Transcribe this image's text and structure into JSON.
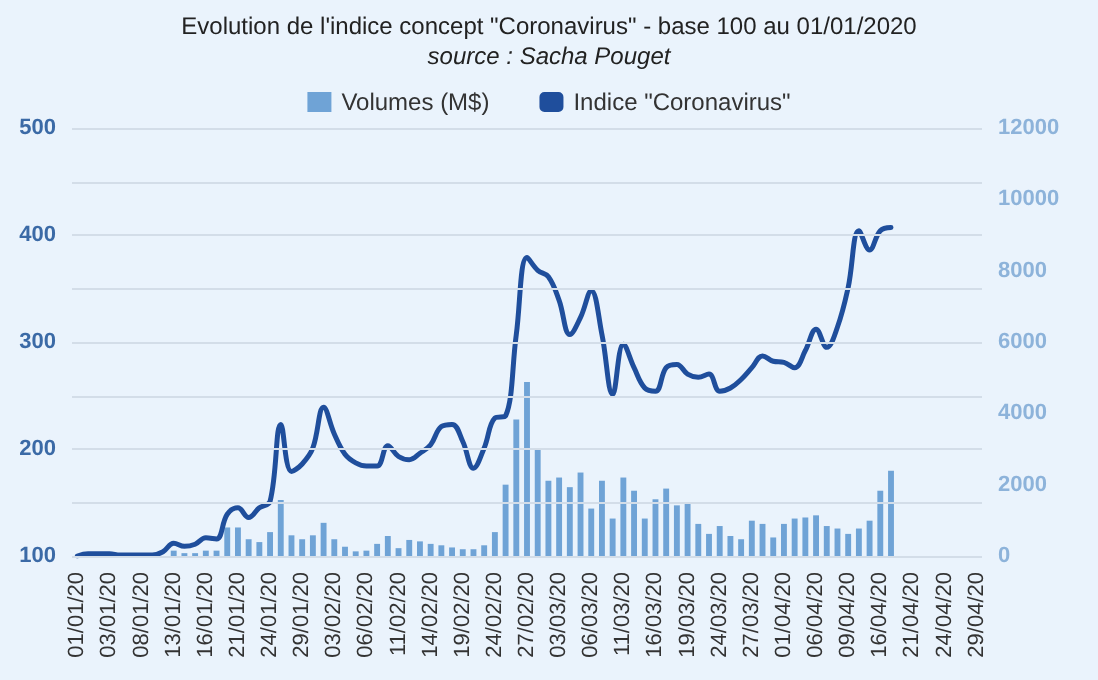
{
  "chart_data": {
    "type": "bar",
    "title": "Evolution de l'indice concept \"Coronavirus\" - base 100 au 01/01/2020",
    "subtitle": "source : Sacha Pouget",
    "categories": [
      "01/01/20",
      null,
      null,
      "03/01/20",
      null,
      null,
      "08/01/20",
      null,
      null,
      "13/01/20",
      null,
      null,
      "16/01/20",
      null,
      null,
      "21/01/20",
      null,
      null,
      "24/01/20",
      null,
      null,
      "29/01/20",
      null,
      null,
      "03/02/20",
      null,
      null,
      "06/02/20",
      null,
      null,
      "11/02/20",
      null,
      null,
      "14/02/20",
      null,
      null,
      "19/02/20",
      null,
      null,
      "24/02/20",
      null,
      null,
      "27/02/20",
      null,
      null,
      "03/03/20",
      null,
      null,
      "06/03/20",
      null,
      null,
      "11/03/20",
      null,
      null,
      "16/03/20",
      null,
      null,
      "19/03/20",
      null,
      null,
      "24/03/20",
      null,
      null,
      "27/03/20",
      null,
      null,
      "01/04/20",
      null,
      null,
      "06/04/20",
      null,
      null,
      "09/04/20",
      null,
      null,
      "16/04/20",
      null,
      null,
      "21/04/20",
      null,
      null,
      "24/04/20",
      null,
      null,
      "29/04/20"
    ],
    "series": [
      {
        "name": "Volumes (M$)",
        "axis": "y2",
        "color": "#6fa3d6",
        "values": [
          0,
          0,
          0,
          0,
          0,
          0,
          0,
          0,
          0,
          150,
          80,
          80,
          150,
          150,
          800,
          800,
          470,
          390,
          670,
          1570,
          580,
          470,
          580,
          930,
          470,
          260,
          130,
          150,
          340,
          560,
          220,
          450,
          410,
          340,
          300,
          240,
          190,
          190,
          300,
          670,
          2000,
          3830,
          4880,
          3010,
          2110,
          2200,
          1930,
          2340,
          1330,
          2110,
          1050,
          2200,
          1830,
          1050,
          1590,
          1890,
          1420,
          1510,
          900,
          620,
          840,
          560,
          470,
          990,
          900,
          520,
          900,
          1050,
          1080,
          1140,
          840,
          770,
          620,
          770,
          990,
          1830,
          2390,
          null,
          null,
          null,
          null,
          null,
          null,
          null,
          null
        ]
      },
      {
        "name": "Indice \"Coronavirus\"",
        "type": "line",
        "color": "#1f4e9c",
        "values": [
          100,
          102,
          102,
          102,
          101,
          101,
          101,
          101,
          104,
          112,
          109,
          111,
          117,
          116,
          139,
          145,
          136,
          145,
          151,
          223,
          179,
          186,
          201,
          239,
          214,
          195,
          187,
          184,
          184,
          203,
          193,
          190,
          196,
          204,
          221,
          223,
          207,
          182,
          201,
          229,
          231,
          307,
          379,
          367,
          361,
          339,
          307,
          323,
          348,
          307,
          251,
          298,
          276,
          257,
          254,
          276,
          279,
          270,
          267,
          270,
          254,
          257,
          265,
          276,
          287,
          282,
          281,
          276,
          292,
          312,
          295,
          314,
          351,
          404,
          386,
          404,
          407,
          null,
          null,
          null,
          null,
          null,
          null,
          null,
          null
        ]
      }
    ],
    "ylim": [
      100,
      500
    ],
    "yticks": [
      100,
      {
        "value": 150,
        "label": null
      },
      200,
      {
        "value": 250,
        "label": null
      },
      300,
      {
        "value": 350,
        "label": null
      },
      400,
      {
        "value": 450,
        "label": null
      },
      500
    ],
    "y2lim": [
      0,
      12000
    ],
    "y2ticks": [
      0,
      2000,
      4000,
      6000,
      8000,
      10000,
      12000
    ],
    "grid": "y",
    "legend": "top",
    "marker": "none",
    "line_style": "solid"
  }
}
